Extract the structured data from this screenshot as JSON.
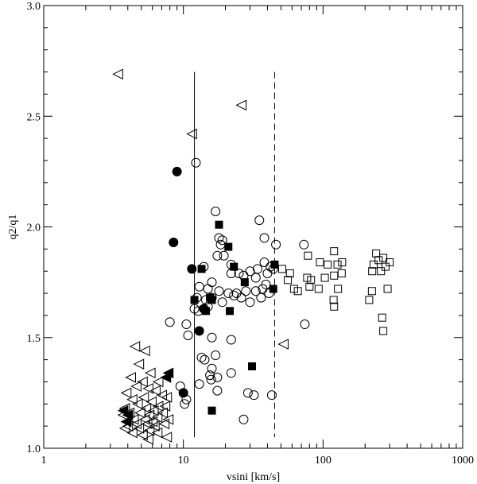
{
  "chart_data": {
    "type": "scatter",
    "title": "",
    "xlabel": "vsini [km/s]",
    "ylabel": "q2/q1",
    "xscale": "log",
    "xlim": [
      1,
      1000
    ],
    "ylim": [
      1.0,
      3.0
    ],
    "x_ticks": [
      1,
      10,
      100,
      1000
    ],
    "x_tick_labels": [
      "1",
      "10",
      "100",
      "1000"
    ],
    "y_ticks": [
      1.0,
      1.5,
      2.0,
      2.5,
      3.0
    ],
    "y_tick_labels": [
      "1.0",
      "1.5",
      "2.0",
      "2.5",
      "3.0"
    ],
    "grid": false,
    "legend": "none",
    "reference_lines": [
      {
        "x": 12,
        "y_range": [
          1.05,
          2.7
        ],
        "style": "solid"
      },
      {
        "x": 45,
        "y_range": [
          1.05,
          2.7
        ],
        "style": "dashed"
      }
    ],
    "series": [
      {
        "marker": "triangle-left-open",
        "points": [
          [
            3.4,
            2.69
          ],
          [
            11.5,
            2.42
          ],
          [
            26,
            2.55
          ],
          [
            52,
            1.47
          ],
          [
            4.5,
            1.46
          ],
          [
            5.3,
            1.44
          ],
          [
            4.8,
            1.38
          ],
          [
            5.8,
            1.34
          ],
          [
            4.2,
            1.32
          ],
          [
            5.1,
            1.3
          ],
          [
            6.6,
            1.3
          ],
          [
            4.6,
            1.28
          ],
          [
            5.6,
            1.27
          ],
          [
            6.3,
            1.26
          ],
          [
            3.9,
            1.25
          ],
          [
            7.0,
            1.24
          ],
          [
            5.2,
            1.23
          ],
          [
            7.6,
            1.23
          ],
          [
            4.3,
            1.22
          ],
          [
            5.9,
            1.21
          ],
          [
            4.7,
            1.2
          ],
          [
            6.6,
            1.19
          ],
          [
            7.4,
            1.19
          ],
          [
            3.8,
            1.18
          ],
          [
            5.4,
            1.18
          ],
          [
            6.1,
            1.17
          ],
          [
            4.1,
            1.16
          ],
          [
            4.9,
            1.16
          ],
          [
            7.1,
            1.16
          ],
          [
            3.7,
            1.15
          ],
          [
            5.7,
            1.15
          ],
          [
            6.5,
            1.14
          ],
          [
            4.4,
            1.13
          ],
          [
            5.3,
            1.13
          ],
          [
            7.8,
            1.13
          ],
          [
            3.9,
            1.12
          ],
          [
            6.0,
            1.12
          ],
          [
            4.6,
            1.11
          ],
          [
            5.5,
            1.11
          ],
          [
            7.3,
            1.11
          ],
          [
            4.0,
            1.1
          ],
          [
            6.2,
            1.1
          ],
          [
            3.8,
            1.09
          ],
          [
            4.8,
            1.09
          ],
          [
            5.7,
            1.08
          ],
          [
            4.3,
            1.07
          ],
          [
            6.5,
            1.07
          ],
          [
            5.1,
            1.06
          ],
          [
            7.6,
            1.05
          ],
          [
            5.6,
            1.04
          ]
        ]
      },
      {
        "marker": "triangle-left-filled",
        "points": [
          [
            7.8,
            1.34
          ],
          [
            7.5,
            1.32
          ],
          [
            3.7,
            1.17
          ],
          [
            4.0,
            1.15
          ],
          [
            3.9,
            1.12
          ]
        ]
      },
      {
        "marker": "circle-open",
        "points": [
          [
            12.3,
            2.29
          ],
          [
            17,
            2.07
          ],
          [
            18,
            1.95
          ],
          [
            19,
            1.94
          ],
          [
            18.5,
            1.92
          ],
          [
            35,
            2.03
          ],
          [
            17.5,
            1.87
          ],
          [
            19.5,
            1.87
          ],
          [
            38,
            1.95
          ],
          [
            46,
            1.92
          ],
          [
            73,
            1.92
          ],
          [
            14,
            1.82
          ],
          [
            22,
            1.83
          ],
          [
            30,
            1.8
          ],
          [
            34,
            1.81
          ],
          [
            38,
            1.84
          ],
          [
            42,
            1.82
          ],
          [
            22,
            1.79
          ],
          [
            25,
            1.79
          ],
          [
            27,
            1.78
          ],
          [
            33,
            1.77
          ],
          [
            40,
            1.79
          ],
          [
            44,
            1.81
          ],
          [
            13,
            1.73
          ],
          [
            15,
            1.72
          ],
          [
            18,
            1.71
          ],
          [
            21,
            1.7
          ],
          [
            24,
            1.7
          ],
          [
            28,
            1.71
          ],
          [
            33,
            1.71
          ],
          [
            37,
            1.72
          ],
          [
            39,
            1.74
          ],
          [
            41,
            1.7
          ],
          [
            16,
            1.75
          ],
          [
            12.5,
            1.68
          ],
          [
            14.5,
            1.67
          ],
          [
            16,
            1.68
          ],
          [
            19,
            1.66
          ],
          [
            23,
            1.69
          ],
          [
            26,
            1.68
          ],
          [
            30,
            1.66
          ],
          [
            36,
            1.68
          ],
          [
            12,
            1.63
          ],
          [
            15,
            1.64
          ],
          [
            12.8,
            1.62
          ],
          [
            8,
            1.57
          ],
          [
            10.5,
            1.56
          ],
          [
            10.8,
            1.51
          ],
          [
            16,
            1.5
          ],
          [
            22,
            1.49
          ],
          [
            74,
            1.56
          ],
          [
            13.5,
            1.41
          ],
          [
            17,
            1.42
          ],
          [
            14.2,
            1.4
          ],
          [
            16,
            1.36
          ],
          [
            22,
            1.34
          ],
          [
            15.5,
            1.33
          ],
          [
            17.5,
            1.32
          ],
          [
            15.8,
            1.31
          ],
          [
            13,
            1.29
          ],
          [
            9.5,
            1.28
          ],
          [
            17.5,
            1.26
          ],
          [
            29,
            1.25
          ],
          [
            32,
            1.24
          ],
          [
            43,
            1.24
          ],
          [
            10.5,
            1.22
          ],
          [
            10.2,
            1.2
          ],
          [
            27,
            1.13
          ]
        ]
      },
      {
        "marker": "circle-filled",
        "points": [
          [
            9,
            2.25
          ],
          [
            8.5,
            1.93
          ],
          [
            11.5,
            1.81
          ],
          [
            14,
            1.63
          ],
          [
            13,
            1.53
          ],
          [
            10,
            1.25
          ]
        ]
      },
      {
        "marker": "square-filled",
        "points": [
          [
            18,
            2.01
          ],
          [
            21,
            1.91
          ],
          [
            13.5,
            1.81
          ],
          [
            23,
            1.82
          ],
          [
            45,
            1.83
          ],
          [
            27.5,
            1.75
          ],
          [
            12,
            1.67
          ],
          [
            15.5,
            1.68
          ],
          [
            16,
            1.67
          ],
          [
            14.5,
            1.62
          ],
          [
            21.5,
            1.62
          ],
          [
            44,
            1.72
          ],
          [
            31,
            1.37
          ],
          [
            16,
            1.17
          ]
        ]
      },
      {
        "marker": "square-open",
        "points": [
          [
            51,
            1.81
          ],
          [
            58,
            1.79
          ],
          [
            56,
            1.76
          ],
          [
            62,
            1.72
          ],
          [
            66,
            1.71
          ],
          [
            78,
            1.87
          ],
          [
            77,
            1.77
          ],
          [
            80,
            1.73
          ],
          [
            82,
            1.76
          ],
          [
            95,
            1.84
          ],
          [
            93,
            1.72
          ],
          [
            103,
            1.77
          ],
          [
            108,
            1.83
          ],
          [
            120,
            1.89
          ],
          [
            127,
            1.83
          ],
          [
            120,
            1.78
          ],
          [
            128,
            1.72
          ],
          [
            137,
            1.84
          ],
          [
            136,
            1.79
          ],
          [
            119,
            1.67
          ],
          [
            120,
            1.64
          ],
          [
            214,
            1.67
          ],
          [
            224,
            1.71
          ],
          [
            225,
            1.8
          ],
          [
            230,
            1.83
          ],
          [
            240,
            1.88
          ],
          [
            250,
            1.85
          ],
          [
            260,
            1.8
          ],
          [
            270,
            1.86
          ],
          [
            265,
            1.59
          ],
          [
            270,
            1.53
          ],
          [
            290,
            1.72
          ],
          [
            300,
            1.84
          ],
          [
            280,
            1.82
          ]
        ]
      }
    ]
  }
}
